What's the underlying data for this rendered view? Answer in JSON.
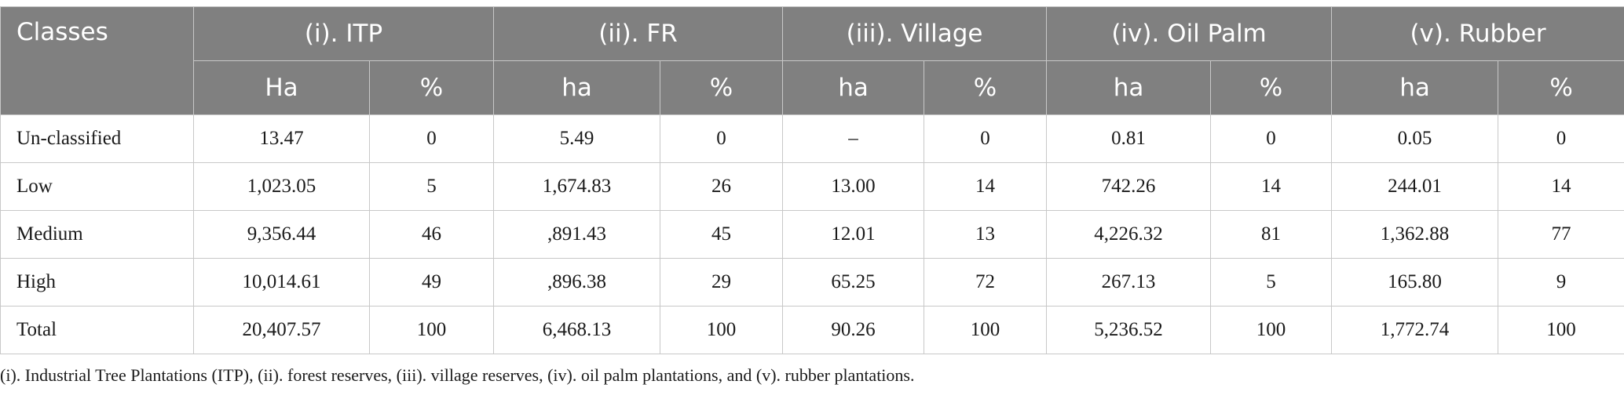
{
  "table": {
    "header": {
      "classes": "Classes",
      "groups": [
        "(i). ITP",
        "(ii). FR",
        "(iii). Village",
        "(iv). Oil Palm",
        "(v). Rubber"
      ],
      "subheaders": [
        "Ha",
        "%",
        "ha",
        "%",
        "ha",
        "%",
        "ha",
        "%",
        "ha",
        "%"
      ]
    },
    "rows": [
      {
        "label": "Un-classified",
        "cells": [
          "13.47",
          "0",
          "5.49",
          "0",
          "–",
          "0",
          "0.81",
          "0",
          "0.05",
          "0"
        ]
      },
      {
        "label": "Low",
        "cells": [
          "1,023.05",
          "5",
          "1,674.83",
          "26",
          "13.00",
          "14",
          "742.26",
          "14",
          "244.01",
          "14"
        ]
      },
      {
        "label": "Medium",
        "cells": [
          "9,356.44",
          "46",
          ",891.43",
          "45",
          "12.01",
          "13",
          "4,226.32",
          "81",
          "1,362.88",
          "77"
        ]
      },
      {
        "label": "High",
        "cells": [
          "10,014.61",
          "49",
          ",896.38",
          "29",
          "65.25",
          "72",
          "267.13",
          "5",
          "165.80",
          "9"
        ]
      },
      {
        "label": "Total",
        "cells": [
          "20,407.57",
          "100",
          "6,468.13",
          "100",
          "90.26",
          "100",
          "5,236.52",
          "100",
          "1,772.74",
          "100"
        ]
      }
    ]
  },
  "footnote": "(i). Industrial Tree Plantations (ITP), (ii). forest reserves, (iii). village reserves, (iv). oil palm plantations, and (v). rubber plantations.",
  "colors": {
    "header_bg": "#808080",
    "header_text": "#ffffff",
    "grid": "#c8c8c8",
    "body_text": "#1a1a1a"
  }
}
